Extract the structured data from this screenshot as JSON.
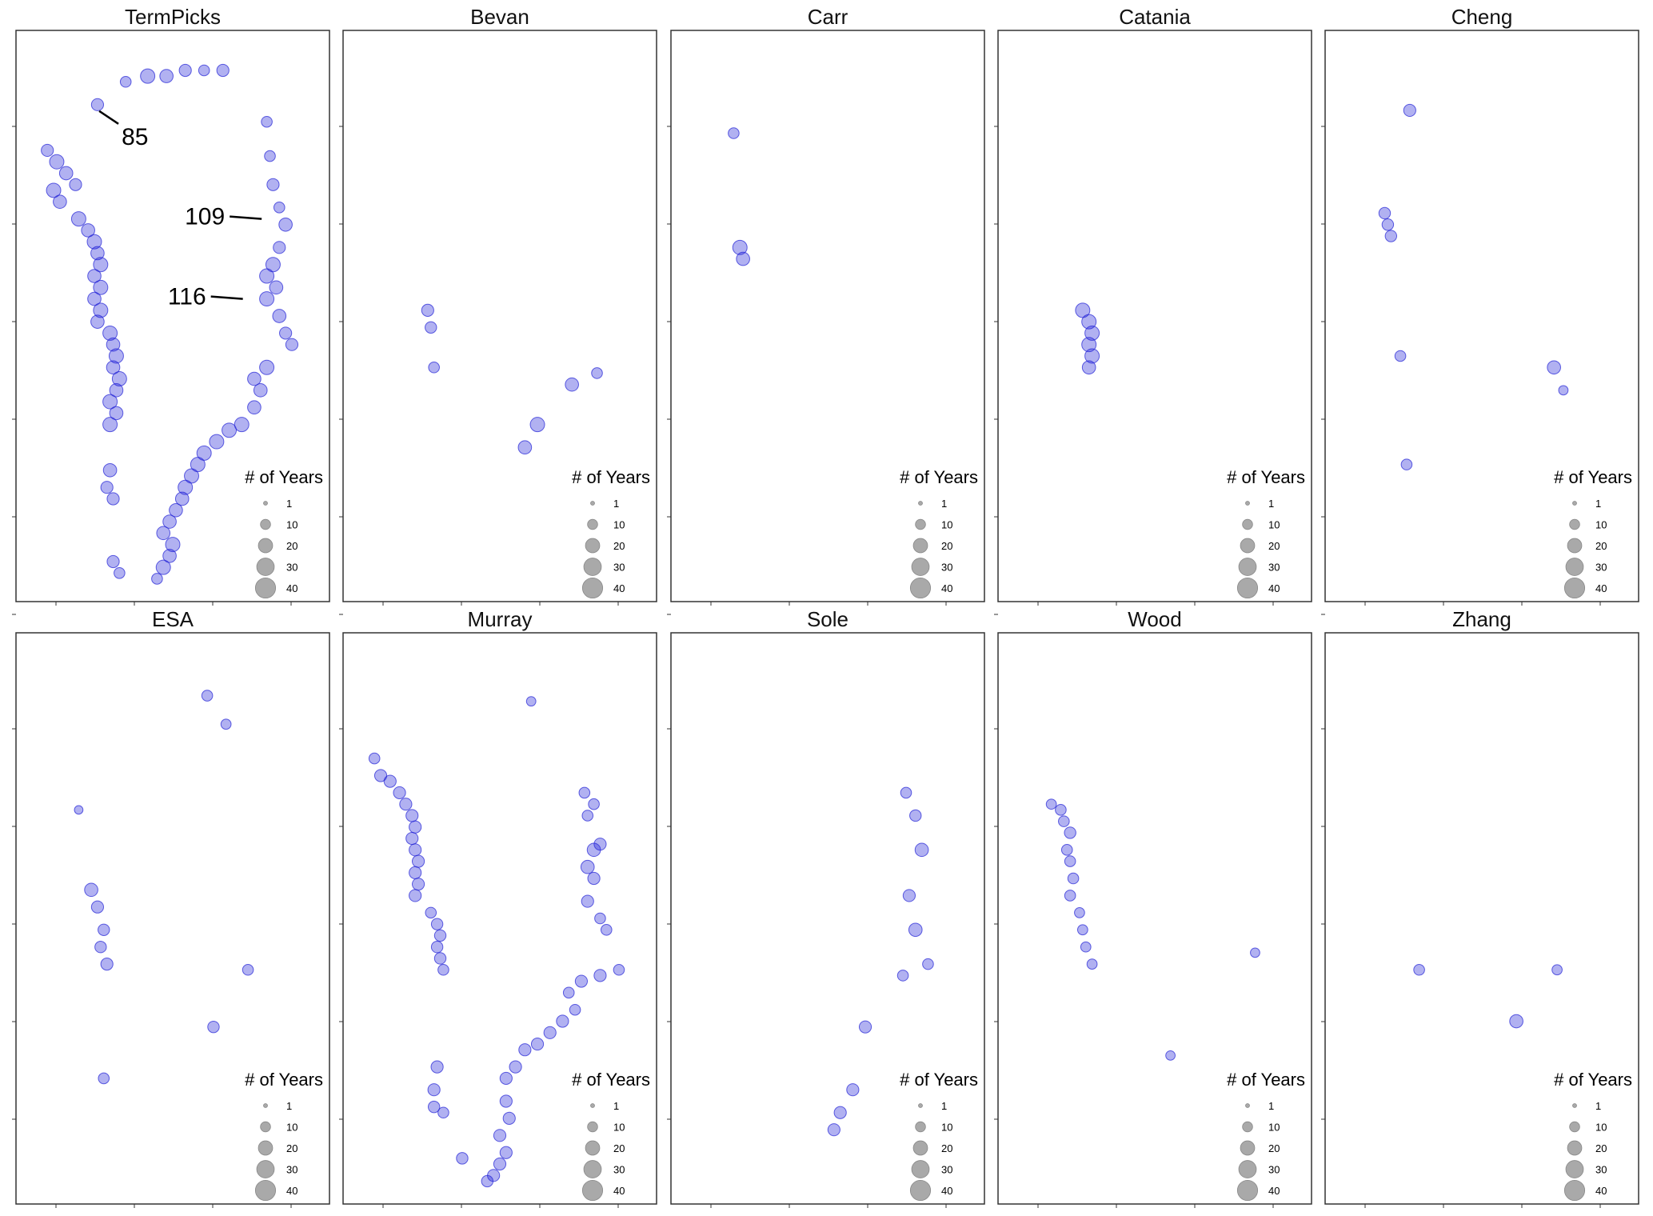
{
  "figure": {
    "legend": {
      "title": "# of Years",
      "entries": [
        {
          "label": "1",
          "value": 1
        },
        {
          "label": "10",
          "value": 10
        },
        {
          "label": "20",
          "value": 20
        },
        {
          "label": "30",
          "value": 30
        },
        {
          "label": "40",
          "value": 40
        }
      ]
    },
    "colors": {
      "marker": "#1f1fd6",
      "legend_marker": "#9a9a9a",
      "coastline": "#555555",
      "frame": "#333333"
    },
    "panels": [
      {
        "id": "termpicks",
        "title": "TermPicks",
        "annotations": [
          {
            "text": "85",
            "target": [
              0.24,
              0.13
            ]
          },
          {
            "text": "109",
            "target": [
              0.85,
              0.33
            ]
          },
          {
            "text": "116",
            "target": [
              0.79,
              0.47
            ]
          }
        ],
        "points": [
          [
            0.26,
            0.13,
            10
          ],
          [
            0.35,
            0.09,
            8
          ],
          [
            0.42,
            0.08,
            14
          ],
          [
            0.48,
            0.08,
            12
          ],
          [
            0.54,
            0.07,
            10
          ],
          [
            0.6,
            0.07,
            8
          ],
          [
            0.66,
            0.07,
            10
          ],
          [
            0.1,
            0.21,
            10
          ],
          [
            0.13,
            0.23,
            14
          ],
          [
            0.16,
            0.25,
            12
          ],
          [
            0.19,
            0.27,
            10
          ],
          [
            0.12,
            0.28,
            14
          ],
          [
            0.14,
            0.3,
            12
          ],
          [
            0.2,
            0.33,
            14
          ],
          [
            0.23,
            0.35,
            12
          ],
          [
            0.25,
            0.37,
            14
          ],
          [
            0.26,
            0.39,
            12
          ],
          [
            0.27,
            0.41,
            14
          ],
          [
            0.25,
            0.43,
            12
          ],
          [
            0.27,
            0.45,
            14
          ],
          [
            0.25,
            0.47,
            12
          ],
          [
            0.27,
            0.49,
            14
          ],
          [
            0.26,
            0.51,
            12
          ],
          [
            0.3,
            0.53,
            14
          ],
          [
            0.31,
            0.55,
            12
          ],
          [
            0.32,
            0.57,
            14
          ],
          [
            0.31,
            0.59,
            12
          ],
          [
            0.33,
            0.61,
            14
          ],
          [
            0.32,
            0.63,
            12
          ],
          [
            0.3,
            0.65,
            14
          ],
          [
            0.32,
            0.67,
            12
          ],
          [
            0.3,
            0.69,
            14
          ],
          [
            0.3,
            0.77,
            12
          ],
          [
            0.29,
            0.8,
            10
          ],
          [
            0.31,
            0.82,
            10
          ],
          [
            0.31,
            0.93,
            10
          ],
          [
            0.33,
            0.95,
            8
          ],
          [
            0.45,
            0.96,
            8
          ],
          [
            0.8,
            0.16,
            8
          ],
          [
            0.81,
            0.22,
            8
          ],
          [
            0.82,
            0.27,
            10
          ],
          [
            0.84,
            0.31,
            8
          ],
          [
            0.86,
            0.34,
            12
          ],
          [
            0.84,
            0.38,
            10
          ],
          [
            0.82,
            0.41,
            14
          ],
          [
            0.8,
            0.43,
            14
          ],
          [
            0.83,
            0.45,
            12
          ],
          [
            0.8,
            0.47,
            14
          ],
          [
            0.84,
            0.5,
            12
          ],
          [
            0.86,
            0.53,
            10
          ],
          [
            0.88,
            0.55,
            10
          ],
          [
            0.8,
            0.59,
            14
          ],
          [
            0.76,
            0.61,
            12
          ],
          [
            0.78,
            0.63,
            12
          ],
          [
            0.76,
            0.66,
            12
          ],
          [
            0.72,
            0.69,
            14
          ],
          [
            0.68,
            0.7,
            14
          ],
          [
            0.64,
            0.72,
            14
          ],
          [
            0.6,
            0.74,
            14
          ],
          [
            0.58,
            0.76,
            14
          ],
          [
            0.56,
            0.78,
            14
          ],
          [
            0.54,
            0.8,
            14
          ],
          [
            0.53,
            0.82,
            12
          ],
          [
            0.51,
            0.84,
            12
          ],
          [
            0.49,
            0.86,
            12
          ],
          [
            0.47,
            0.88,
            12
          ],
          [
            0.5,
            0.9,
            14
          ],
          [
            0.49,
            0.92,
            12
          ],
          [
            0.47,
            0.94,
            14
          ]
        ]
      },
      {
        "id": "bevan",
        "title": "Bevan",
        "annotations": [],
        "points": [
          [
            0.27,
            0.49,
            10
          ],
          [
            0.28,
            0.52,
            9
          ],
          [
            0.29,
            0.59,
            8
          ],
          [
            0.73,
            0.62,
            12
          ],
          [
            0.81,
            0.6,
            8
          ],
          [
            0.62,
            0.69,
            14
          ],
          [
            0.58,
            0.73,
            12
          ]
        ]
      },
      {
        "id": "carr",
        "title": "Carr",
        "annotations": [],
        "points": [
          [
            0.2,
            0.18,
            8
          ],
          [
            0.22,
            0.38,
            14
          ],
          [
            0.23,
            0.4,
            12
          ]
        ]
      },
      {
        "id": "catania",
        "title": "Catania",
        "annotations": [],
        "points": [
          [
            0.27,
            0.49,
            14
          ],
          [
            0.29,
            0.51,
            14
          ],
          [
            0.3,
            0.53,
            14
          ],
          [
            0.29,
            0.55,
            14
          ],
          [
            0.3,
            0.57,
            14
          ],
          [
            0.29,
            0.59,
            12
          ]
        ]
      },
      {
        "id": "cheng",
        "title": "Cheng",
        "annotations": [],
        "points": [
          [
            0.27,
            0.14,
            10
          ],
          [
            0.19,
            0.32,
            9
          ],
          [
            0.2,
            0.34,
            9
          ],
          [
            0.21,
            0.36,
            9
          ],
          [
            0.24,
            0.57,
            8
          ],
          [
            0.73,
            0.59,
            12
          ],
          [
            0.76,
            0.63,
            6
          ],
          [
            0.26,
            0.76,
            8
          ]
        ]
      },
      {
        "id": "esa",
        "title": "ESA",
        "annotations": [],
        "points": [
          [
            0.61,
            0.11,
            8
          ],
          [
            0.67,
            0.16,
            7
          ],
          [
            0.2,
            0.31,
            5
          ],
          [
            0.24,
            0.45,
            12
          ],
          [
            0.26,
            0.48,
            10
          ],
          [
            0.28,
            0.52,
            9
          ],
          [
            0.27,
            0.55,
            9
          ],
          [
            0.29,
            0.58,
            10
          ],
          [
            0.74,
            0.59,
            8
          ],
          [
            0.63,
            0.69,
            9
          ],
          [
            0.28,
            0.78,
            8
          ]
        ]
      },
      {
        "id": "murray",
        "title": "Murray",
        "annotations": [],
        "points": [
          [
            0.6,
            0.12,
            6
          ],
          [
            0.1,
            0.22,
            8
          ],
          [
            0.12,
            0.25,
            10
          ],
          [
            0.15,
            0.26,
            10
          ],
          [
            0.18,
            0.28,
            10
          ],
          [
            0.2,
            0.3,
            10
          ],
          [
            0.22,
            0.32,
            10
          ],
          [
            0.23,
            0.34,
            10
          ],
          [
            0.22,
            0.36,
            10
          ],
          [
            0.23,
            0.38,
            10
          ],
          [
            0.24,
            0.4,
            10
          ],
          [
            0.23,
            0.42,
            10
          ],
          [
            0.24,
            0.44,
            10
          ],
          [
            0.23,
            0.46,
            10
          ],
          [
            0.28,
            0.49,
            8
          ],
          [
            0.3,
            0.51,
            9
          ],
          [
            0.31,
            0.53,
            9
          ],
          [
            0.3,
            0.55,
            9
          ],
          [
            0.31,
            0.57,
            9
          ],
          [
            0.32,
            0.59,
            8
          ],
          [
            0.77,
            0.28,
            8
          ],
          [
            0.8,
            0.3,
            8
          ],
          [
            0.78,
            0.32,
            8
          ],
          [
            0.82,
            0.37,
            10
          ],
          [
            0.8,
            0.38,
            12
          ],
          [
            0.78,
            0.41,
            12
          ],
          [
            0.8,
            0.43,
            10
          ],
          [
            0.78,
            0.47,
            10
          ],
          [
            0.82,
            0.5,
            8
          ],
          [
            0.84,
            0.52,
            8
          ],
          [
            0.88,
            0.59,
            8
          ],
          [
            0.82,
            0.6,
            10
          ],
          [
            0.76,
            0.61,
            10
          ],
          [
            0.72,
            0.63,
            8
          ],
          [
            0.74,
            0.66,
            8
          ],
          [
            0.7,
            0.68,
            10
          ],
          [
            0.66,
            0.7,
            10
          ],
          [
            0.62,
            0.72,
            10
          ],
          [
            0.58,
            0.73,
            10
          ],
          [
            0.55,
            0.76,
            10
          ],
          [
            0.52,
            0.78,
            10
          ],
          [
            0.3,
            0.76,
            10
          ],
          [
            0.29,
            0.8,
            10
          ],
          [
            0.29,
            0.83,
            9
          ],
          [
            0.32,
            0.84,
            8
          ],
          [
            0.52,
            0.82,
            10
          ],
          [
            0.53,
            0.85,
            10
          ],
          [
            0.5,
            0.88,
            10
          ],
          [
            0.52,
            0.91,
            10
          ],
          [
            0.5,
            0.93,
            10
          ],
          [
            0.48,
            0.95,
            10
          ],
          [
            0.46,
            0.96,
            9
          ],
          [
            0.38,
            0.92,
            9
          ]
        ]
      },
      {
        "id": "sole",
        "title": "Sole",
        "annotations": [],
        "points": [
          [
            0.75,
            0.28,
            8
          ],
          [
            0.78,
            0.32,
            9
          ],
          [
            0.8,
            0.38,
            12
          ],
          [
            0.76,
            0.46,
            10
          ],
          [
            0.78,
            0.52,
            12
          ],
          [
            0.82,
            0.58,
            8
          ],
          [
            0.74,
            0.6,
            8
          ],
          [
            0.62,
            0.69,
            10
          ],
          [
            0.58,
            0.8,
            10
          ],
          [
            0.54,
            0.84,
            10
          ],
          [
            0.52,
            0.87,
            10
          ]
        ]
      },
      {
        "id": "wood",
        "title": "Wood",
        "annotations": [],
        "points": [
          [
            0.17,
            0.3,
            7
          ],
          [
            0.2,
            0.31,
            8
          ],
          [
            0.21,
            0.33,
            8
          ],
          [
            0.23,
            0.35,
            9
          ],
          [
            0.22,
            0.38,
            8
          ],
          [
            0.23,
            0.4,
            8
          ],
          [
            0.24,
            0.43,
            8
          ],
          [
            0.23,
            0.46,
            8
          ],
          [
            0.26,
            0.49,
            7
          ],
          [
            0.27,
            0.52,
            7
          ],
          [
            0.28,
            0.55,
            7
          ],
          [
            0.3,
            0.58,
            7
          ],
          [
            0.82,
            0.56,
            6
          ],
          [
            0.55,
            0.74,
            6
          ]
        ]
      },
      {
        "id": "zhang",
        "title": "Zhang",
        "annotations": [],
        "points": [
          [
            0.3,
            0.59,
            8
          ],
          [
            0.74,
            0.59,
            7
          ],
          [
            0.61,
            0.68,
            12
          ]
        ]
      }
    ]
  }
}
